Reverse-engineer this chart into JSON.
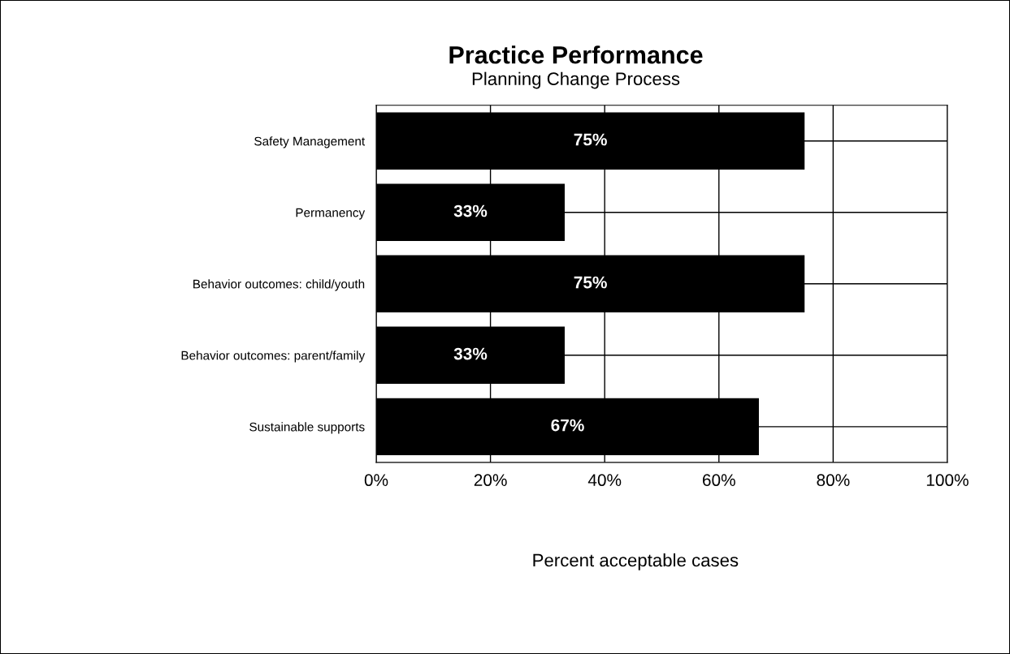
{
  "chart_data": {
    "type": "bar",
    "orientation": "horizontal",
    "title": "Practice Performance",
    "subtitle": "Planning Change Process",
    "xlabel": "Percent acceptable cases",
    "categories": [
      "Safety Management",
      "Permanency",
      "Behavior outcomes: child/youth",
      "Behavior outcomes: parent/family",
      "Sustainable supports"
    ],
    "values": [
      75,
      33,
      75,
      33,
      67
    ],
    "value_labels": [
      "75%",
      "33%",
      "75%",
      "33%",
      "67%"
    ],
    "color": "#000000",
    "xlim": [
      0,
      100
    ],
    "xticks": [
      {
        "value": 0,
        "label": "0%"
      },
      {
        "value": 20,
        "label": "20%"
      },
      {
        "value": 40,
        "label": "40%"
      },
      {
        "value": 60,
        "label": "60%"
      },
      {
        "value": 80,
        "label": "80%"
      },
      {
        "value": 100,
        "label": "100%"
      }
    ],
    "grid": true
  }
}
